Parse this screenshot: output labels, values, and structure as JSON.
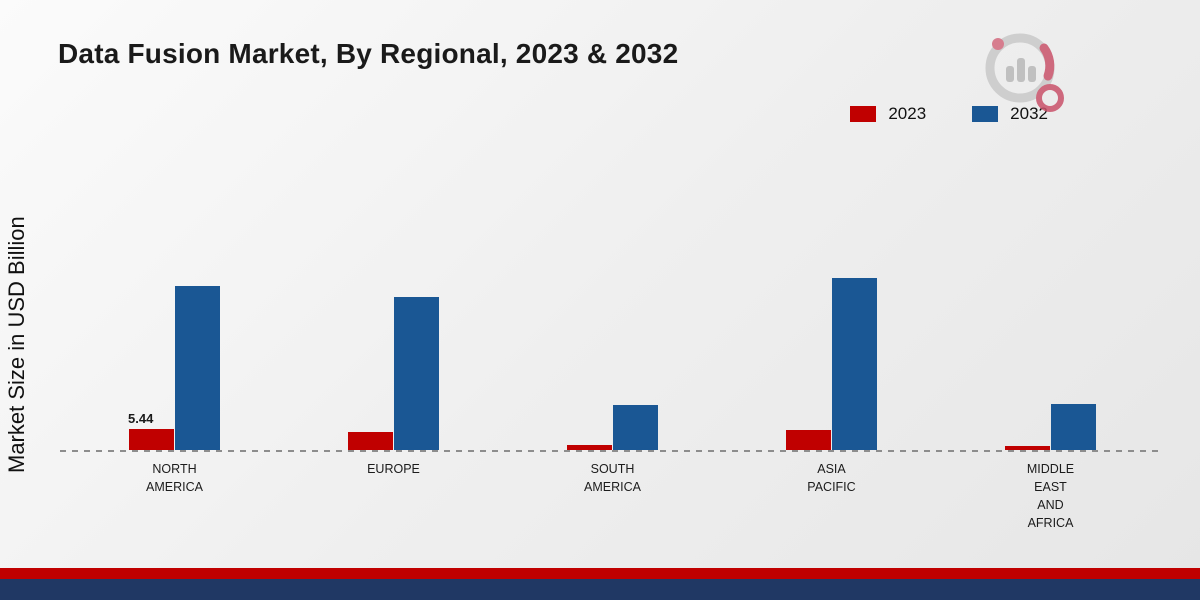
{
  "page": {
    "title": "Data Fusion Market, By Regional, 2023 & 2032",
    "y_axis_label": "Market Size in USD Billion"
  },
  "legend": {
    "items": [
      {
        "label": "2023",
        "color": "#c00000"
      },
      {
        "label": "2032",
        "color": "#1a5794"
      }
    ]
  },
  "chart_data": {
    "type": "bar",
    "title": "Data Fusion Market, By Regional, 2023 & 2032",
    "xlabel": "",
    "ylabel": "Market Size in USD Billion",
    "categories": [
      "NORTH AMERICA",
      "EUROPE",
      "SOUTH AMERICA",
      "ASIA PACIFIC",
      "MIDDLE EAST AND AFRICA"
    ],
    "category_lines": [
      [
        "NORTH",
        "AMERICA"
      ],
      [
        "EUROPE"
      ],
      [
        "SOUTH",
        "AMERICA"
      ],
      [
        "ASIA",
        "PACIFIC"
      ],
      [
        "MIDDLE",
        "EAST",
        "AND",
        "AFRICA"
      ]
    ],
    "series": [
      {
        "name": "2023",
        "color": "#c00000",
        "values": [
          5.44,
          4.7,
          1.2,
          5.2,
          1.0
        ]
      },
      {
        "name": "2032",
        "color": "#1a5794",
        "values": [
          42.5,
          39.5,
          11.6,
          44.5,
          11.9
        ]
      }
    ],
    "annotations": [
      {
        "series": "2023",
        "category_index": 0,
        "text": "5.44"
      }
    ],
    "ylim": [
      0,
      50
    ],
    "baseline_style": "dashed",
    "legend_position": "top-right",
    "grid": false
  },
  "branding": {
    "logo_name": "market-research-logo",
    "accent_red": "#c00000",
    "accent_navy": "#203864"
  },
  "footer": {
    "stripes": [
      {
        "color": "#c00000"
      },
      {
        "color": "#203864"
      }
    ]
  }
}
